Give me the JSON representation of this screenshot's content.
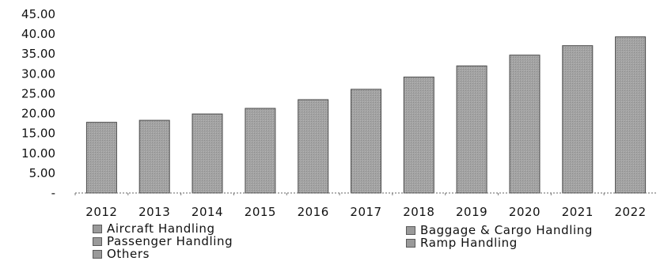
{
  "chart_data": {
    "type": "bar",
    "categories": [
      "2012",
      "2013",
      "2014",
      "2015",
      "2016",
      "2017",
      "2018",
      "2019",
      "2020",
      "2021",
      "2022"
    ],
    "values": [
      17.8,
      18.3,
      19.9,
      21.3,
      23.5,
      26.1,
      29.2,
      32.0,
      34.7,
      37.1,
      39.3
    ],
    "y_tick_labels": [
      "-",
      "5.00",
      "10.00",
      "15.00",
      "20.00",
      "25.00",
      "30.00",
      "35.00",
      "40.00",
      "45.00"
    ],
    "ylim": [
      0,
      45
    ],
    "grid": false,
    "legend_position": "bottom",
    "legend": [
      {
        "label": "Aircraft Handling",
        "color": "#9a9a9a"
      },
      {
        "label": "Baggage & Cargo Handling",
        "color": "#8f8f8f"
      },
      {
        "label": "Passenger Handling",
        "color": "#a4a4a4"
      },
      {
        "label": "Ramp Handling",
        "color": "#8a8a8a"
      },
      {
        "label": "Others",
        "color": "#a8a8a8"
      }
    ],
    "bar_color": "#a0a0a0",
    "bar_border_color": "#4a4a4a"
  }
}
